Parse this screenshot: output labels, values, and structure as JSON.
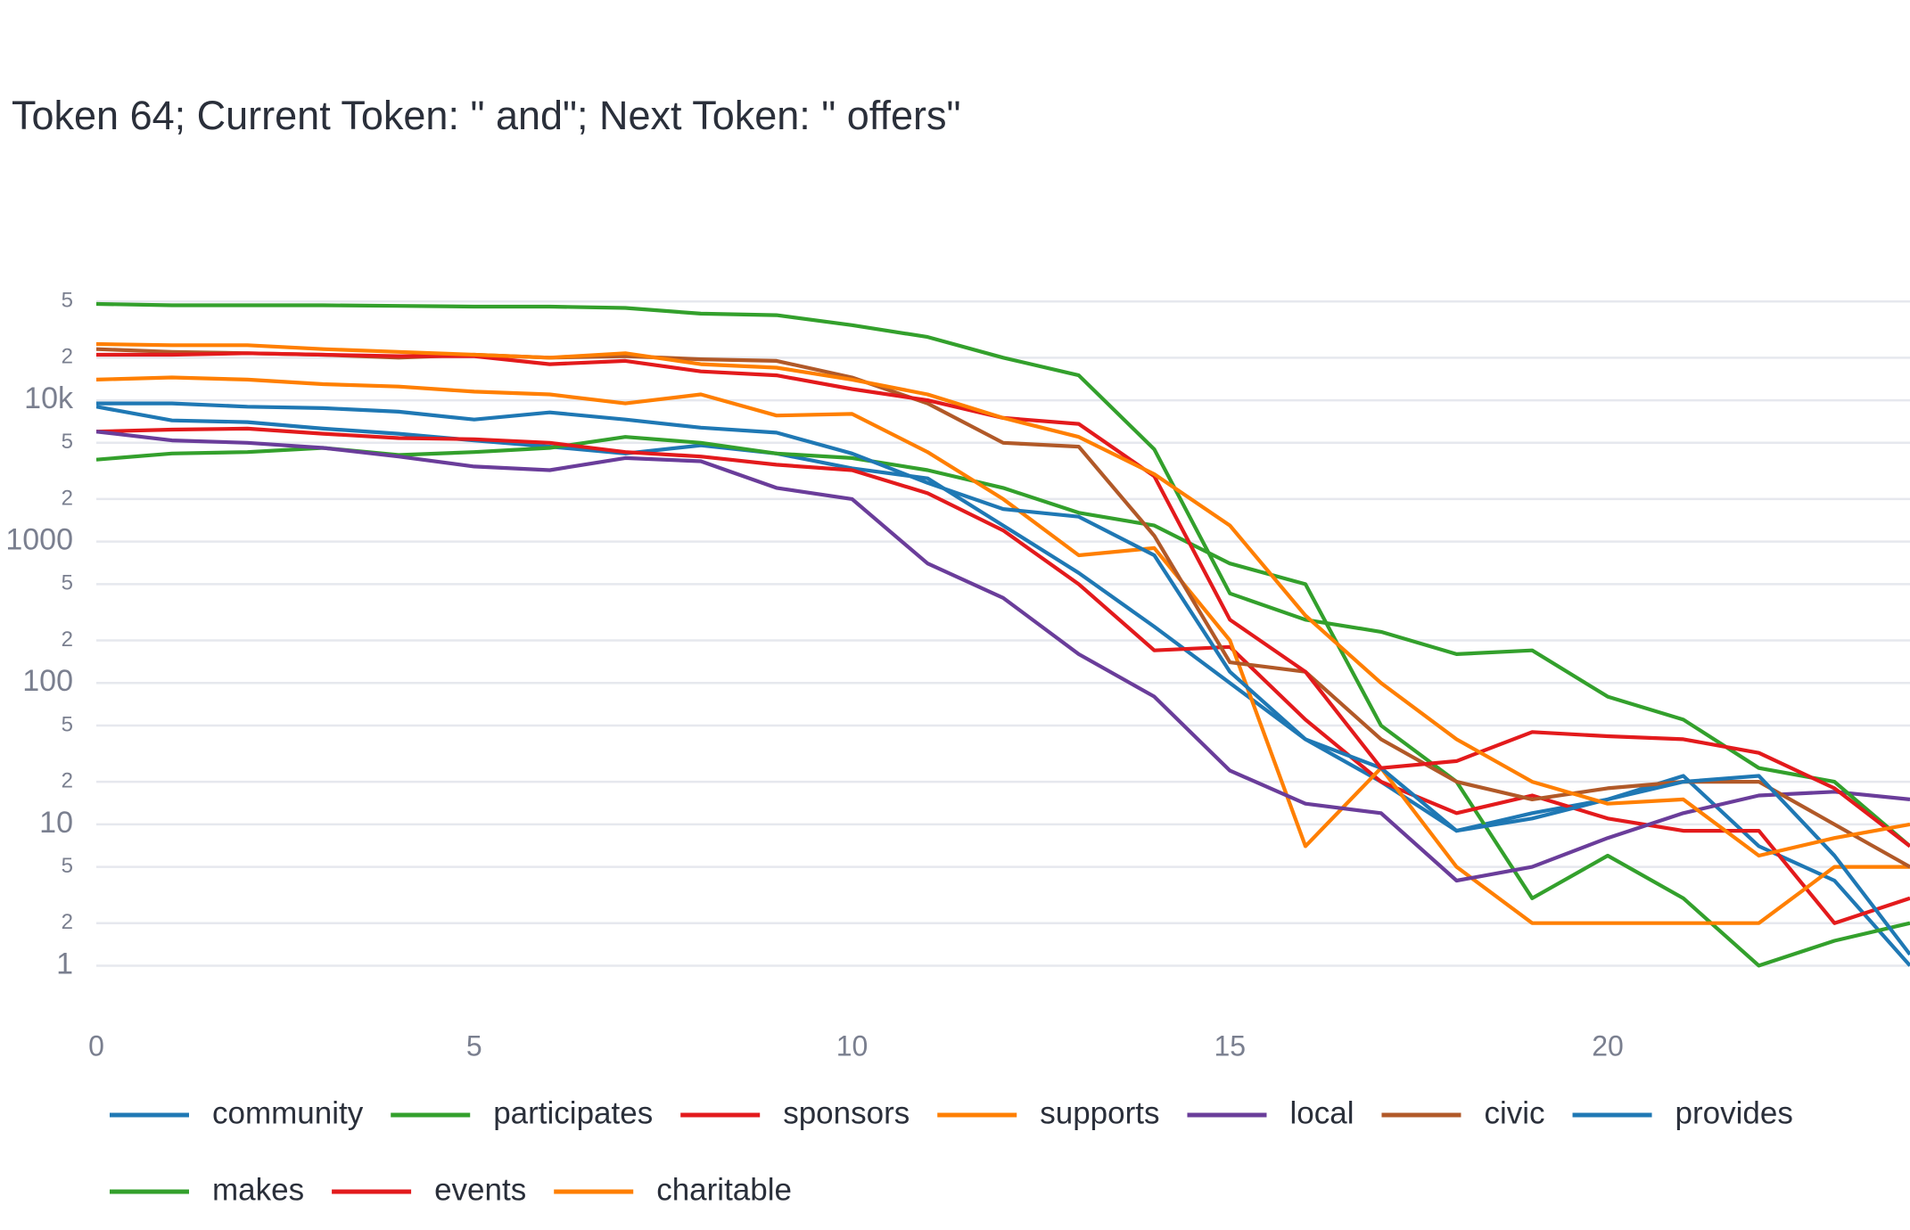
{
  "chart_data": {
    "type": "line",
    "title": "Token 64; Current Token: \" and\"; Next Token: \" offers\"",
    "x": [
      0,
      1,
      2,
      3,
      4,
      5,
      6,
      7,
      8,
      9,
      10,
      11,
      12,
      13,
      14,
      15,
      16,
      17,
      18,
      19,
      20,
      21,
      22,
      23,
      24
    ],
    "xlim": [
      0,
      24
    ],
    "xticks": [
      0,
      5,
      10,
      15,
      20
    ],
    "ylim": [
      0.48,
      95000
    ],
    "log_y": true,
    "grid": true,
    "yticks": [
      1,
      2,
      5,
      10,
      {
        "value": 20,
        "label": "2"
      },
      {
        "value": 50,
        "label": "5"
      },
      100,
      {
        "value": 200,
        "label": "2"
      },
      {
        "value": 500,
        "label": "5"
      },
      1000,
      {
        "value": 2000,
        "label": "2"
      },
      {
        "value": 5000,
        "label": "5"
      },
      {
        "value": 10000,
        "label": "10k"
      },
      {
        "value": 20000,
        "label": "2"
      },
      {
        "value": 50000,
        "label": "5"
      }
    ],
    "legend_position": "bottom",
    "series": [
      {
        "name": "community",
        "color": "#1f78b4",
        "values": [
          9000,
          7200,
          7000,
          6300,
          5800,
          5200,
          4700,
          4200,
          4800,
          4200,
          3300,
          2800,
          1300,
          600,
          250,
          100,
          40,
          20,
          9,
          12,
          15,
          22,
          7,
          4,
          1
        ]
      },
      {
        "name": "participates",
        "color": "#33a02c",
        "values": [
          3800,
          4200,
          4300,
          4600,
          4100,
          4300,
          4600,
          5500,
          5000,
          4200,
          3900,
          3200,
          2400,
          1600,
          1300,
          700,
          500,
          50,
          20,
          3,
          6,
          3,
          1,
          1.5,
          2
        ]
      },
      {
        "name": "sponsors",
        "color": "#e31a1c",
        "values": [
          6000,
          6200,
          6300,
          5800,
          5400,
          5300,
          5000,
          4300,
          4000,
          3500,
          3200,
          2200,
          1200,
          500,
          170,
          180,
          55,
          20,
          12,
          16,
          11,
          9,
          9,
          2,
          3
        ]
      },
      {
        "name": "supports",
        "color": "#ff7f00",
        "values": [
          14000,
          14500,
          14000,
          13000,
          12500,
          11500,
          11000,
          9500,
          11000,
          7800,
          8000,
          4300,
          2000,
          800,
          900,
          200,
          7,
          25,
          5,
          2,
          2,
          2,
          2,
          5,
          5
        ]
      },
      {
        "name": "local",
        "color": "#6a3d9a",
        "values": [
          6000,
          5200,
          5000,
          4600,
          4000,
          3400,
          3200,
          3900,
          3700,
          2400,
          2000,
          700,
          400,
          160,
          80,
          24,
          14,
          12,
          4,
          5,
          8,
          12,
          16,
          17,
          15
        ]
      },
      {
        "name": "civic",
        "color": "#b15928",
        "values": [
          23000,
          22000,
          21500,
          21000,
          20000,
          21000,
          20000,
          20500,
          19500,
          19000,
          14500,
          9500,
          5000,
          4700,
          1100,
          140,
          120,
          40,
          20,
          15,
          18,
          20,
          20,
          10,
          5
        ]
      },
      {
        "name": "provides",
        "color": "#1f78b4",
        "values": [
          9500,
          9500,
          9000,
          8800,
          8300,
          7300,
          8200,
          7300,
          6400,
          5900,
          4200,
          2600,
          1700,
          1500,
          800,
          120,
          40,
          25,
          9,
          11,
          15,
          20,
          22,
          6,
          1.2
        ]
      },
      {
        "name": "makes",
        "color": "#33a02c",
        "values": [
          48000,
          47000,
          47000,
          47000,
          46500,
          46000,
          46000,
          45000,
          41000,
          40000,
          34000,
          28000,
          20000,
          15000,
          4500,
          430,
          280,
          230,
          160,
          170,
          80,
          55,
          25,
          20,
          7
        ]
      },
      {
        "name": "events",
        "color": "#e31a1c",
        "values": [
          21000,
          21000,
          21500,
          21000,
          20500,
          20500,
          18000,
          19000,
          16000,
          15000,
          12000,
          10000,
          7500,
          6800,
          2900,
          280,
          120,
          25,
          28,
          45,
          42,
          40,
          32,
          18,
          7
        ]
      },
      {
        "name": "charitable",
        "color": "#ff7f00",
        "values": [
          25000,
          24500,
          24500,
          23000,
          22000,
          21000,
          20000,
          21500,
          18000,
          17000,
          14000,
          11000,
          7500,
          5500,
          3000,
          1300,
          300,
          100,
          40,
          20,
          14,
          15,
          6,
          8,
          10
        ]
      }
    ]
  }
}
